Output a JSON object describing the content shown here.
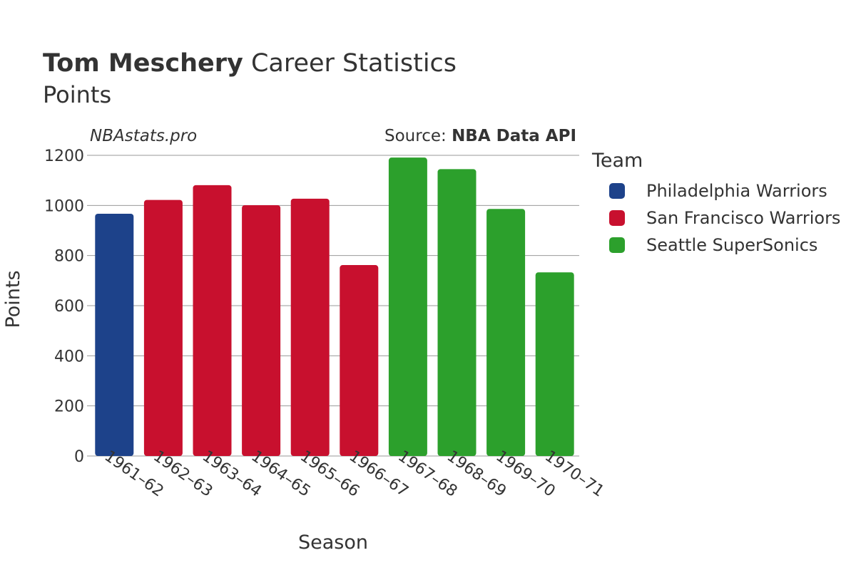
{
  "header": {
    "player": "Tom Meschery",
    "title_rest": " Career Statistics",
    "subtitle": "Points"
  },
  "watermark": "NBAstats.pro",
  "source": {
    "prefix": "Source: ",
    "name": "NBA Data API"
  },
  "legend": {
    "title": "Team",
    "items": [
      {
        "label": "Philadelphia Warriors",
        "color": "#1d428a"
      },
      {
        "label": "San Francisco Warriors",
        "color": "#c8102e"
      },
      {
        "label": "Seattle SuperSonics",
        "color": "#2ca02c"
      }
    ]
  },
  "chart_data": {
    "type": "bar",
    "title": "Tom Meschery Career Statistics",
    "subtitle": "Points",
    "xlabel": "Season",
    "ylabel": "Points",
    "ylim": [
      0,
      1200
    ],
    "yticks": [
      0,
      200,
      400,
      600,
      800,
      1000,
      1200
    ],
    "categories": [
      "1961–62",
      "1962–63",
      "1963–64",
      "1964–65",
      "1965–66",
      "1966–67",
      "1967–68",
      "1968–69",
      "1969–70",
      "1970–71"
    ],
    "values": [
      967,
      1022,
      1081,
      1001,
      1027,
      762,
      1191,
      1145,
      986,
      733
    ],
    "teams": [
      "Philadelphia Warriors",
      "San Francisco Warriors",
      "San Francisco Warriors",
      "San Francisco Warriors",
      "San Francisco Warriors",
      "San Francisco Warriors",
      "Seattle SuperSonics",
      "Seattle SuperSonics",
      "Seattle SuperSonics",
      "Seattle SuperSonics"
    ]
  }
}
